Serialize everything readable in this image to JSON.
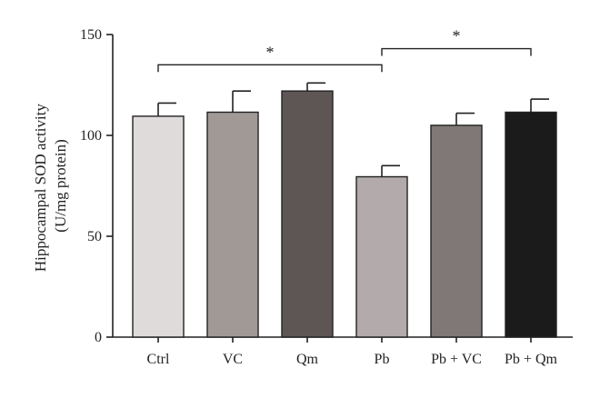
{
  "chart_data": {
    "type": "bar",
    "categories": [
      "Ctrl",
      "VC",
      "Qm",
      "Pb",
      "Pb + VC",
      "Pb + Qm"
    ],
    "values": [
      109.5,
      111.5,
      122,
      79.5,
      105,
      111.5
    ],
    "errors": [
      6.5,
      10.5,
      4,
      5.5,
      6,
      6.5
    ],
    "bar_colors": [
      "#e0dbdb",
      "#a19996",
      "#5e5655",
      "#b3abab",
      "#7f7876",
      "#1b1b1b"
    ],
    "ylabel_line1": "Hippocampal SOD activity",
    "ylabel_line2": "(U/mg protein)",
    "ylim": [
      0,
      150
    ],
    "yticks": [
      0,
      50,
      100,
      150
    ],
    "grid": false,
    "significance": [
      {
        "from": "Ctrl",
        "to": "Pb",
        "label": "*",
        "y": 135
      },
      {
        "from": "Pb",
        "to": "Pb + Qm",
        "label": "*",
        "y": 143
      }
    ]
  }
}
